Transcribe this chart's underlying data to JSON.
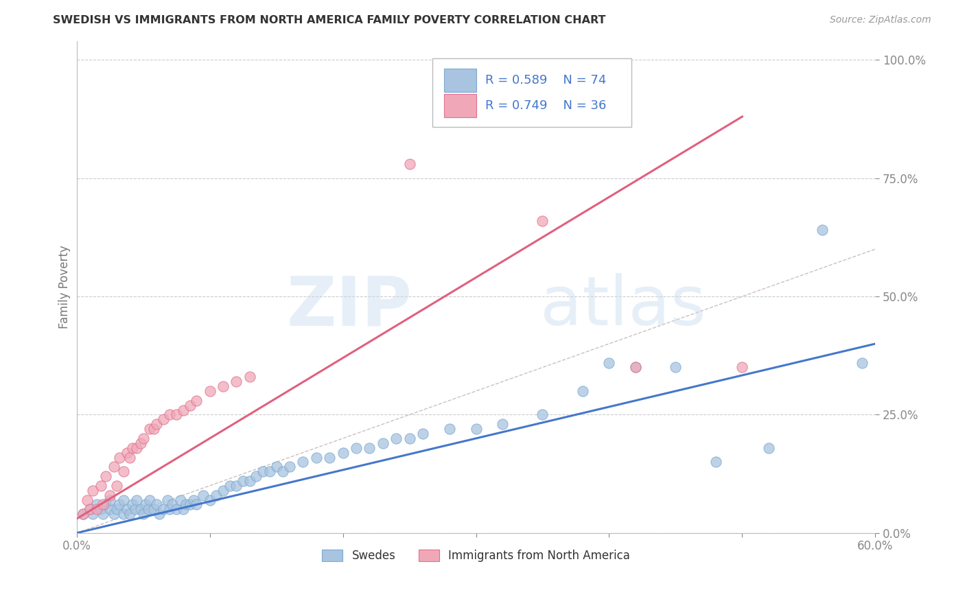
{
  "title": "SWEDISH VS IMMIGRANTS FROM NORTH AMERICA FAMILY POVERTY CORRELATION CHART",
  "source": "Source: ZipAtlas.com",
  "ylabel": "Family Poverty",
  "watermark_zip": "ZIP",
  "watermark_atlas": "atlas",
  "xmin": 0.0,
  "xmax": 0.6,
  "ymin": 0.0,
  "ymax": 1.04,
  "yticks": [
    0.0,
    0.25,
    0.5,
    0.75,
    1.0
  ],
  "ytick_labels": [
    "0.0%",
    "25.0%",
    "50.0%",
    "75.0%",
    "100.0%"
  ],
  "swedes_R": 0.589,
  "swedes_N": 74,
  "immigrants_R": 0.749,
  "immigrants_N": 36,
  "swedes_dot_color": "#A8C4E0",
  "swedes_dot_edge": "#7AAAD0",
  "swedes_line_color": "#4477CC",
  "immigrants_dot_color": "#F0A8B8",
  "immigrants_dot_edge": "#E07090",
  "immigrants_line_color": "#E06080",
  "diagonal_color": "#C8B8B8",
  "legend_text_color": "#4477CC",
  "title_color": "#333333",
  "source_color": "#999999",
  "sw_line_x0": 0.0,
  "sw_line_y0": 0.0,
  "sw_line_x1": 0.6,
  "sw_line_y1": 0.4,
  "im_line_x0": 0.0,
  "im_line_y0": 0.03,
  "im_line_x1": 0.5,
  "im_line_y1": 0.88,
  "swedes_x": [
    0.005,
    0.01,
    0.012,
    0.015,
    0.018,
    0.02,
    0.022,
    0.025,
    0.025,
    0.028,
    0.03,
    0.032,
    0.035,
    0.035,
    0.038,
    0.04,
    0.042,
    0.044,
    0.045,
    0.048,
    0.05,
    0.052,
    0.054,
    0.055,
    0.058,
    0.06,
    0.062,
    0.065,
    0.068,
    0.07,
    0.072,
    0.075,
    0.078,
    0.08,
    0.082,
    0.085,
    0.088,
    0.09,
    0.095,
    0.1,
    0.105,
    0.11,
    0.115,
    0.12,
    0.125,
    0.13,
    0.135,
    0.14,
    0.145,
    0.15,
    0.155,
    0.16,
    0.17,
    0.18,
    0.19,
    0.2,
    0.21,
    0.22,
    0.23,
    0.24,
    0.25,
    0.26,
    0.28,
    0.3,
    0.32,
    0.35,
    0.38,
    0.4,
    0.42,
    0.45,
    0.48,
    0.52,
    0.56,
    0.59
  ],
  "swedes_y": [
    0.04,
    0.05,
    0.04,
    0.06,
    0.05,
    0.04,
    0.06,
    0.05,
    0.07,
    0.04,
    0.05,
    0.06,
    0.04,
    0.07,
    0.05,
    0.04,
    0.06,
    0.05,
    0.07,
    0.05,
    0.04,
    0.06,
    0.05,
    0.07,
    0.05,
    0.06,
    0.04,
    0.05,
    0.07,
    0.05,
    0.06,
    0.05,
    0.07,
    0.05,
    0.06,
    0.06,
    0.07,
    0.06,
    0.08,
    0.07,
    0.08,
    0.09,
    0.1,
    0.1,
    0.11,
    0.11,
    0.12,
    0.13,
    0.13,
    0.14,
    0.13,
    0.14,
    0.15,
    0.16,
    0.16,
    0.17,
    0.18,
    0.18,
    0.19,
    0.2,
    0.2,
    0.21,
    0.22,
    0.22,
    0.23,
    0.25,
    0.3,
    0.36,
    0.35,
    0.35,
    0.15,
    0.18,
    0.64,
    0.36
  ],
  "immigrants_x": [
    0.005,
    0.008,
    0.01,
    0.012,
    0.015,
    0.018,
    0.02,
    0.022,
    0.025,
    0.028,
    0.03,
    0.032,
    0.035,
    0.038,
    0.04,
    0.042,
    0.045,
    0.048,
    0.05,
    0.055,
    0.058,
    0.06,
    0.065,
    0.07,
    0.075,
    0.08,
    0.085,
    0.09,
    0.1,
    0.11,
    0.12,
    0.13,
    0.25,
    0.35,
    0.42,
    0.5
  ],
  "immigrants_y": [
    0.04,
    0.07,
    0.05,
    0.09,
    0.05,
    0.1,
    0.06,
    0.12,
    0.08,
    0.14,
    0.1,
    0.16,
    0.13,
    0.17,
    0.16,
    0.18,
    0.18,
    0.19,
    0.2,
    0.22,
    0.22,
    0.23,
    0.24,
    0.25,
    0.25,
    0.26,
    0.27,
    0.28,
    0.3,
    0.31,
    0.32,
    0.33,
    0.78,
    0.66,
    0.35,
    0.35
  ]
}
